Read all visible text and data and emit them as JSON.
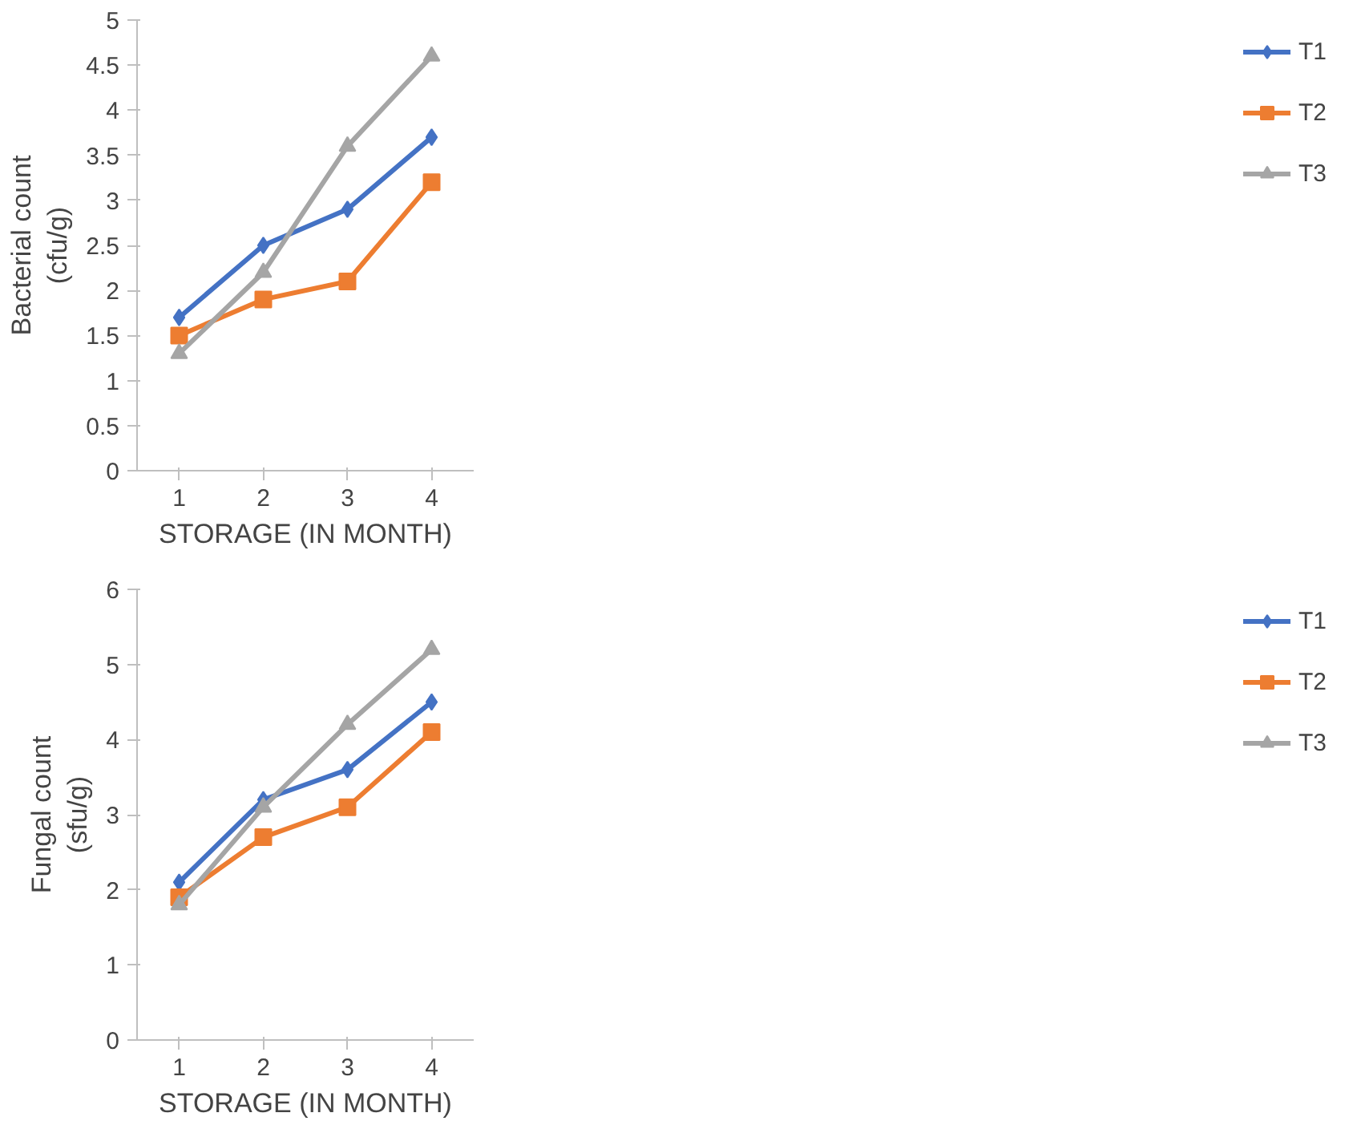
{
  "chart_data": [
    {
      "type": "line",
      "xlabel": "STORAGE (IN MONTH)",
      "ylabel": "Bacterial count\n(cfu/g)",
      "categories": [
        "1",
        "2",
        "3",
        "4"
      ],
      "ylim": [
        0,
        5
      ],
      "yticks": [
        0,
        0.5,
        1,
        1.5,
        2,
        2.5,
        3,
        3.5,
        4,
        4.5,
        5
      ],
      "grid": false,
      "legend": "right",
      "series": [
        {
          "name": "T1",
          "color": "#4472c4",
          "marker": "diamond",
          "values": [
            1.7,
            2.5,
            2.9,
            3.7
          ]
        },
        {
          "name": "T2",
          "color": "#ed7d31",
          "marker": "square",
          "values": [
            1.5,
            1.9,
            2.1,
            3.2
          ]
        },
        {
          "name": "T3",
          "color": "#a5a5a5",
          "marker": "triangle",
          "values": [
            1.3,
            2.2,
            3.6,
            4.6
          ]
        }
      ]
    },
    {
      "type": "line",
      "xlabel": "STORAGE (IN MONTH)",
      "ylabel": "Fungal count\n(sfu/g)",
      "categories": [
        "1",
        "2",
        "3",
        "4"
      ],
      "ylim": [
        0,
        6
      ],
      "yticks": [
        0,
        1,
        2,
        3,
        4,
        5,
        6
      ],
      "grid": false,
      "legend": "right",
      "series": [
        {
          "name": "T1",
          "color": "#4472c4",
          "marker": "diamond",
          "values": [
            2.1,
            3.2,
            3.6,
            4.5
          ]
        },
        {
          "name": "T2",
          "color": "#ed7d31",
          "marker": "square",
          "values": [
            1.9,
            2.7,
            3.1,
            4.1
          ]
        },
        {
          "name": "T3",
          "color": "#a5a5a5",
          "marker": "triangle",
          "values": [
            1.8,
            3.1,
            4.2,
            5.2
          ]
        }
      ]
    }
  ]
}
